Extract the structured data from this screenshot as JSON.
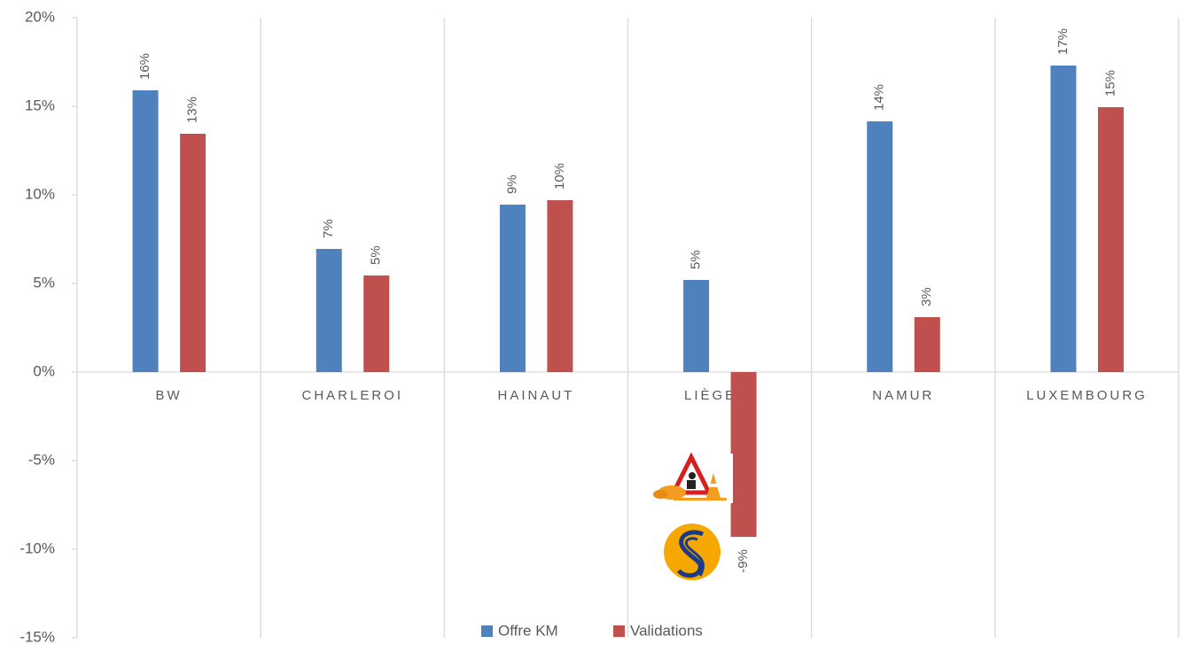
{
  "chart_data": {
    "type": "bar",
    "categories": [
      "BW",
      "CHARLEROI",
      "HAINAUT",
      "LIÈGE-V",
      "NAMUR",
      "LUXEMBOURG"
    ],
    "series": [
      {
        "name": "Offre KM",
        "color": "#4f81bd",
        "values": [
          15.9,
          6.95,
          9.45,
          5.2,
          14.15,
          17.3
        ],
        "value_labels": [
          "16%",
          "7%",
          "9%",
          "5%",
          "14%",
          "17%"
        ]
      },
      {
        "name": "Validations",
        "color": "#c0504d",
        "values": [
          13.45,
          5.45,
          9.7,
          -9.3,
          3.1,
          14.95
        ],
        "value_labels": [
          "13%",
          "5%",
          "10%",
          "-9%",
          "3%",
          "15%"
        ]
      }
    ],
    "ylim": [
      -15,
      20
    ],
    "yticks": [
      {
        "value": -15,
        "label": "-15%"
      },
      {
        "value": -10,
        "label": "-10%"
      },
      {
        "value": -5,
        "label": "-5%"
      },
      {
        "value": 0,
        "label": "0%"
      },
      {
        "value": 5,
        "label": "5%"
      },
      {
        "value": 10,
        "label": "10%"
      },
      {
        "value": 15,
        "label": "15%"
      },
      {
        "value": 20,
        "label": "20%"
      }
    ],
    "legend": "bottom"
  }
}
